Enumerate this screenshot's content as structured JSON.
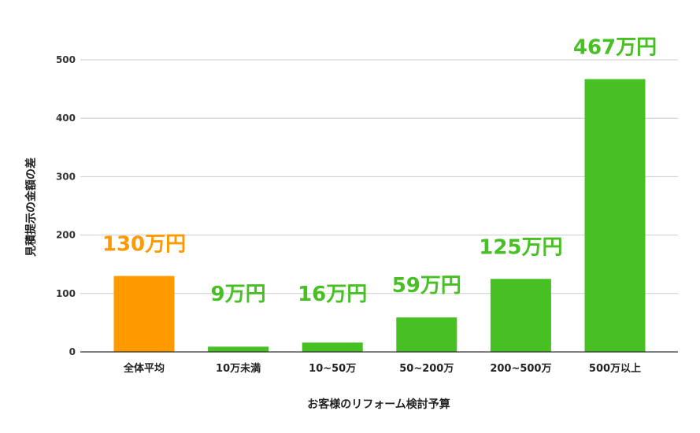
{
  "chart_data": {
    "type": "bar",
    "categories": [
      "全体平均",
      "10万未満",
      "10~50万",
      "50~200万",
      "200~500万",
      "500万以上"
    ],
    "values": [
      130,
      9,
      16,
      59,
      125,
      467
    ],
    "data_labels": [
      "130万円",
      "9万円",
      "16万円",
      "59万円",
      "125万円",
      "467万円"
    ],
    "bar_colors": [
      "#ff9900",
      "#47c023",
      "#47c023",
      "#47c023",
      "#47c023",
      "#47c023"
    ],
    "label_colors": [
      "#ff9900",
      "#47c023",
      "#47c023",
      "#47c023",
      "#47c023",
      "#47c023"
    ],
    "xlabel": "お客様のリフォーム検討予算",
    "ylabel": "見積提示の金額の差",
    "ylim": [
      0,
      500
    ],
    "yticks": [
      0,
      100,
      200,
      300,
      400,
      500
    ],
    "grid": true,
    "legend": "none"
  }
}
